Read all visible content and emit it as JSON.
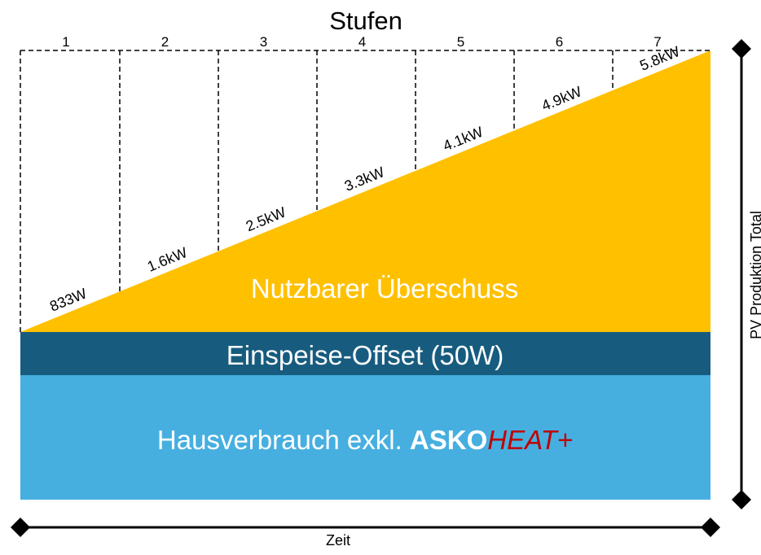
{
  "title": "Stufen",
  "steps": [
    "1",
    "2",
    "3",
    "4",
    "5",
    "6",
    "7"
  ],
  "step_thresholds": [
    "833W",
    "1.6kW",
    "2.5kW",
    "3.3kW",
    "4.1kW",
    "4.9kW",
    "5.8kW"
  ],
  "regions": {
    "surplus": "Nutzbarer Überschuss",
    "offset": "Einspeise-Offset (50W)",
    "house_prefix": "Hausverbrauch exkl. ",
    "brand_bold": "ASKO",
    "brand_italic": "HEAT+"
  },
  "axes": {
    "x_label": "Zeit",
    "y_label": "PV Produktion Total"
  },
  "colors": {
    "surplus": "#ffc000",
    "offset": "#175c7f",
    "house": "#46afe0",
    "brand_accent": "#c00000"
  }
}
